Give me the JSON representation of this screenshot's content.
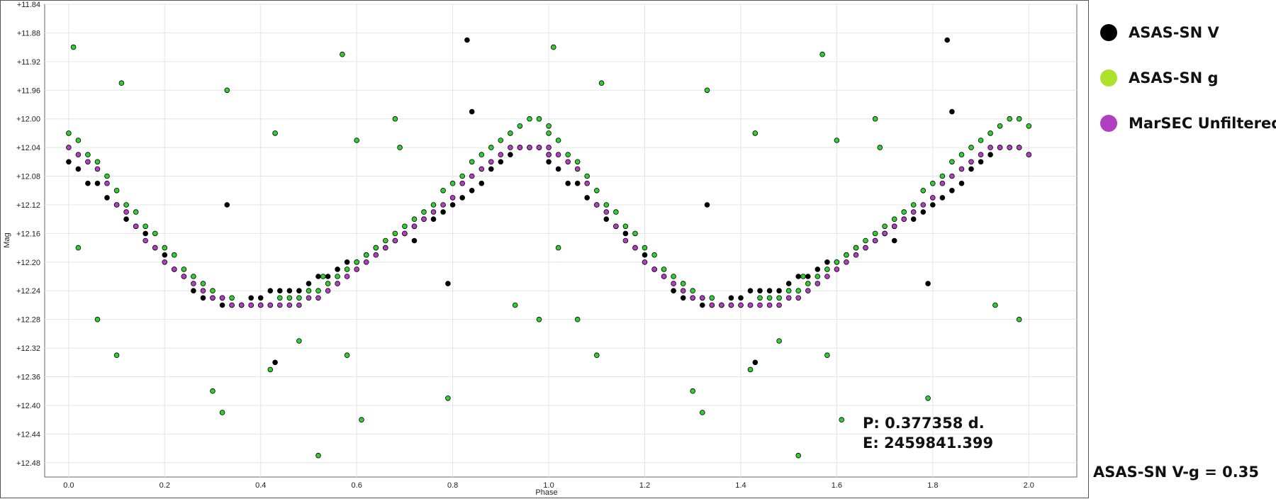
{
  "chart_data": {
    "type": "scatter",
    "xlabel": "Phase",
    "ylabel": "Mag",
    "xlim": [
      -0.05,
      2.1
    ],
    "ylim": [
      11.84,
      12.5
    ],
    "y_inverted": true,
    "grid": true,
    "x_ticks": [
      "0.0",
      "0.2",
      "0.4",
      "0.6",
      "0.8",
      "1.0",
      "1.2",
      "1.4",
      "1.6",
      "1.8",
      "2.0"
    ],
    "y_ticks": [
      "+11.84",
      "+11.88",
      "+11.92",
      "+11.96",
      "+12.00",
      "+12.04",
      "+12.08",
      "+12.12",
      "+12.16",
      "+12.20",
      "+12.24",
      "+12.28",
      "+12.32",
      "+12.36",
      "+12.40",
      "+12.44",
      "+12.48"
    ],
    "legend_position": "right",
    "annotations": [
      "P: 0.377358 d.",
      "E: 2459841.399"
    ],
    "series": [
      {
        "name": "ASAS-SN V",
        "color": "#000000",
        "marker": "circle",
        "x": [
          0.0,
          0.02,
          0.04,
          0.06,
          0.08,
          0.1,
          0.12,
          0.14,
          0.16,
          0.18,
          0.2,
          0.22,
          0.24,
          0.26,
          0.28,
          0.3,
          0.32,
          0.34,
          0.36,
          0.38,
          0.4,
          0.42,
          0.44,
          0.46,
          0.48,
          0.5,
          0.52,
          0.54,
          0.56,
          0.58,
          0.6,
          0.62,
          0.64,
          0.66,
          0.68,
          0.7,
          0.72,
          0.74,
          0.76,
          0.78,
          0.8,
          0.82,
          0.84,
          0.86,
          0.88,
          0.9,
          0.92,
          0.94,
          0.96,
          0.98,
          1.0,
          0.33,
          0.43,
          0.72,
          0.79,
          0.83,
          0.84
        ],
        "y": [
          12.06,
          12.07,
          12.09,
          12.09,
          12.11,
          12.12,
          12.14,
          12.15,
          12.16,
          12.18,
          12.19,
          12.21,
          12.22,
          12.24,
          12.25,
          12.25,
          12.26,
          12.26,
          12.26,
          12.25,
          12.25,
          12.24,
          12.24,
          12.24,
          12.24,
          12.23,
          12.22,
          12.22,
          12.21,
          12.2,
          12.2,
          12.19,
          12.18,
          12.18,
          12.17,
          12.16,
          12.15,
          12.14,
          12.14,
          12.13,
          12.12,
          12.11,
          12.1,
          12.09,
          12.07,
          12.06,
          12.05,
          12.04,
          12.04,
          12.04,
          12.05,
          12.12,
          12.34,
          12.17,
          12.23,
          11.89,
          11.99
        ]
      },
      {
        "name": "ASAS-SN g",
        "color": "#33cc33",
        "marker": "circle",
        "x": [
          0.0,
          0.02,
          0.04,
          0.06,
          0.08,
          0.1,
          0.12,
          0.14,
          0.16,
          0.18,
          0.2,
          0.22,
          0.24,
          0.26,
          0.28,
          0.3,
          0.32,
          0.34,
          0.36,
          0.38,
          0.4,
          0.42,
          0.44,
          0.46,
          0.48,
          0.5,
          0.52,
          0.54,
          0.56,
          0.58,
          0.6,
          0.62,
          0.64,
          0.66,
          0.68,
          0.7,
          0.72,
          0.74,
          0.76,
          0.78,
          0.8,
          0.82,
          0.84,
          0.86,
          0.88,
          0.9,
          0.92,
          0.94,
          0.96,
          0.98,
          1.0,
          0.01,
          0.11,
          0.1,
          0.06,
          0.02,
          0.33,
          0.43,
          0.57,
          0.58,
          0.52,
          0.42,
          0.3,
          0.32,
          0.61,
          0.79,
          0.93,
          0.68,
          0.98,
          0.53,
          0.69,
          0.6,
          0.48
        ],
        "y": [
          12.02,
          12.03,
          12.05,
          12.06,
          12.08,
          12.1,
          12.12,
          12.13,
          12.15,
          12.16,
          12.18,
          12.19,
          12.21,
          12.22,
          12.23,
          12.24,
          12.25,
          12.25,
          12.26,
          12.26,
          12.26,
          12.26,
          12.25,
          12.25,
          12.25,
          12.24,
          12.24,
          12.23,
          12.22,
          12.21,
          12.2,
          12.19,
          12.18,
          12.17,
          12.16,
          12.15,
          12.14,
          12.13,
          12.12,
          12.1,
          12.09,
          12.08,
          12.06,
          12.05,
          12.04,
          12.03,
          12.02,
          12.01,
          12.0,
          12.0,
          12.01,
          11.9,
          11.95,
          12.33,
          12.28,
          12.18,
          11.96,
          12.02,
          11.91,
          12.33,
          12.47,
          12.35,
          12.38,
          12.41,
          12.42,
          12.39,
          12.26,
          12.0,
          12.28,
          12.22,
          12.04,
          12.03,
          12.31
        ]
      },
      {
        "name": "MarSEC Unfiltered",
        "color": "#b040c0",
        "marker": "circle",
        "x": [
          0.0,
          0.02,
          0.04,
          0.06,
          0.08,
          0.1,
          0.12,
          0.14,
          0.16,
          0.18,
          0.2,
          0.22,
          0.24,
          0.26,
          0.28,
          0.3,
          0.32,
          0.34,
          0.36,
          0.38,
          0.4,
          0.42,
          0.44,
          0.46,
          0.48,
          0.5,
          0.52,
          0.54,
          0.56,
          0.58,
          0.6,
          0.62,
          0.64,
          0.66,
          0.68,
          0.7,
          0.72,
          0.74,
          0.76,
          0.78,
          0.8,
          0.82,
          0.84,
          0.86,
          0.88,
          0.9,
          0.92,
          0.94,
          0.96,
          0.98,
          1.0
        ],
        "y": [
          12.04,
          12.05,
          12.06,
          12.07,
          12.09,
          12.12,
          12.13,
          12.15,
          12.17,
          12.18,
          12.2,
          12.21,
          12.22,
          12.23,
          12.24,
          12.25,
          12.25,
          12.26,
          12.26,
          12.26,
          12.26,
          12.26,
          12.26,
          12.26,
          12.26,
          12.25,
          12.25,
          12.24,
          12.23,
          12.22,
          12.21,
          12.2,
          12.19,
          12.18,
          12.17,
          12.16,
          12.15,
          12.14,
          12.13,
          12.12,
          12.11,
          12.09,
          12.08,
          12.07,
          12.06,
          12.05,
          12.04,
          12.04,
          12.04,
          12.04,
          12.05
        ]
      }
    ]
  },
  "footnote": "ASAS-SN V-g = 0.35"
}
